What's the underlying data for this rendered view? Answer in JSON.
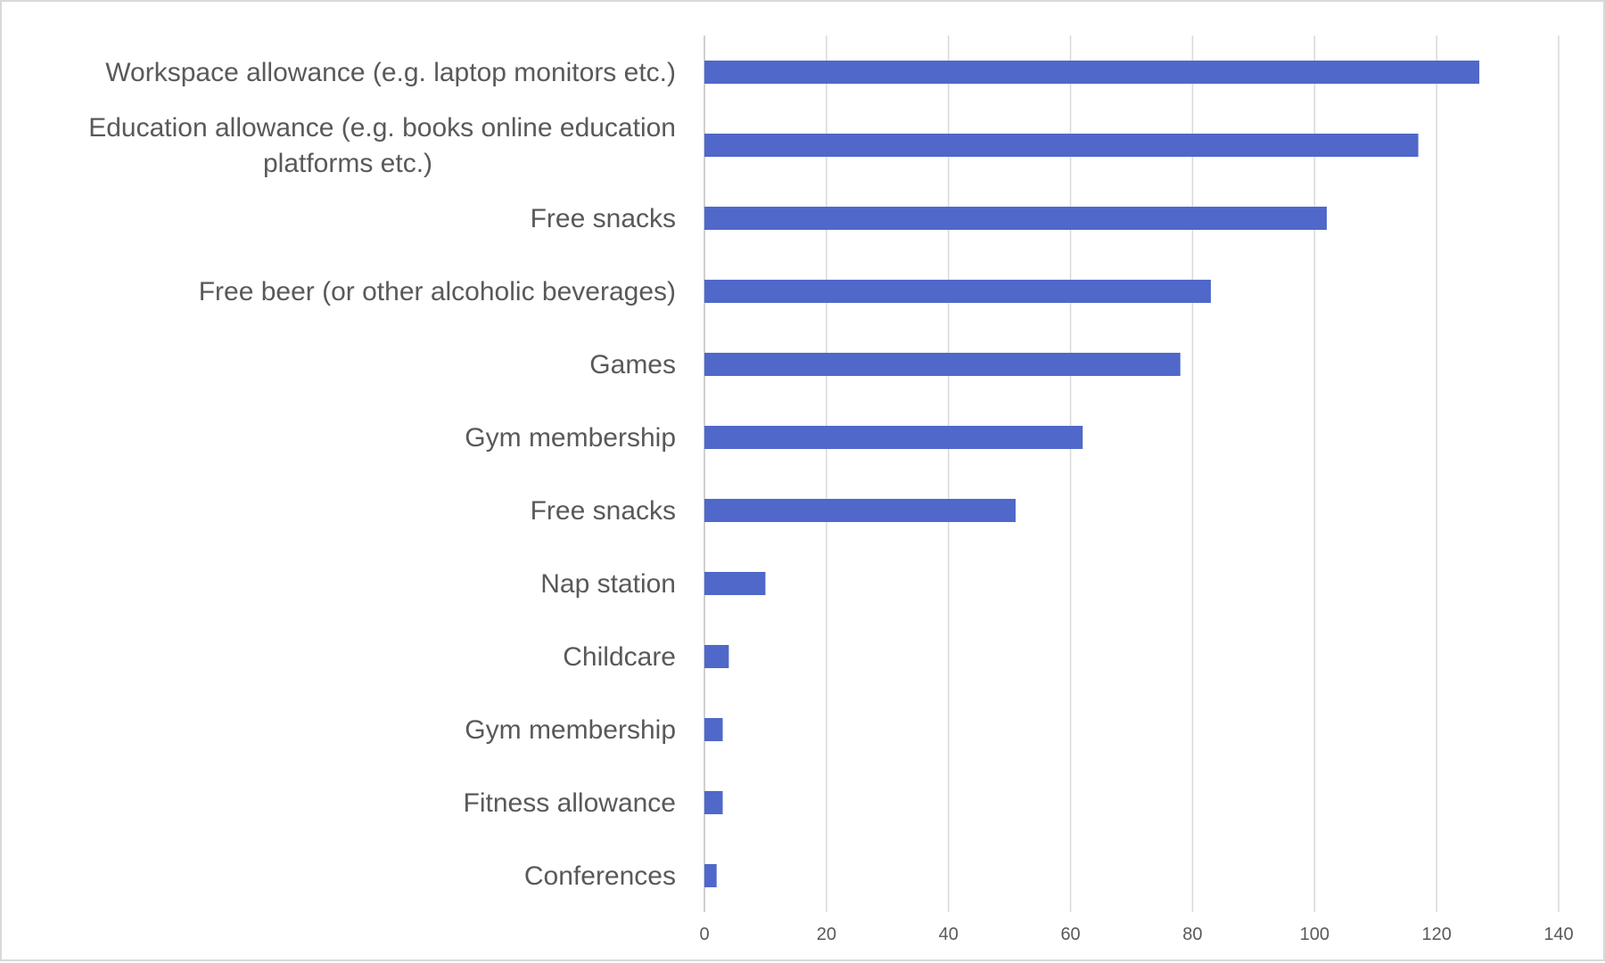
{
  "chart_data": {
    "type": "bar",
    "orientation": "horizontal",
    "categories": [
      "Workspace allowance (e.g. laptop monitors etc.)",
      "Education allowance (e.g. books online education platforms etc.)",
      "Free snacks",
      "Free beer (or other alcoholic beverages)",
      "Games",
      "Gym membership",
      "Free snacks",
      "Nap station",
      "Childcare",
      "Gym membership",
      "Fitness allowance",
      "Conferences"
    ],
    "category_lines": [
      [
        "Workspace allowance (e.g. laptop monitors etc.)"
      ],
      [
        "Education allowance (e.g. books online education",
        "platforms etc.)"
      ],
      [
        "Free snacks"
      ],
      [
        "Free beer (or other alcoholic beverages)"
      ],
      [
        "Games"
      ],
      [
        "Gym membership"
      ],
      [
        "Free snacks"
      ],
      [
        "Nap station"
      ],
      [
        "Childcare"
      ],
      [
        "Gym membership"
      ],
      [
        "Fitness allowance"
      ],
      [
        "Conferences"
      ]
    ],
    "values": [
      127,
      117,
      102,
      83,
      78,
      62,
      51,
      10,
      4,
      3,
      3,
      2
    ],
    "xlim": [
      0,
      140
    ],
    "x_ticks": [
      0,
      20,
      40,
      60,
      80,
      100,
      120,
      140
    ],
    "x_tick_labels": [
      "0",
      "20",
      "40",
      "60",
      "80",
      "100",
      "120",
      "140"
    ],
    "title": "",
    "xlabel": "",
    "ylabel": "",
    "grid": "vertical",
    "legend": "none",
    "colors": {
      "bar": "#4f68c9",
      "grid": "#d9d9d9",
      "axis": "#bfbfbf",
      "text": "#595959",
      "border": "#d9d9d9"
    }
  }
}
